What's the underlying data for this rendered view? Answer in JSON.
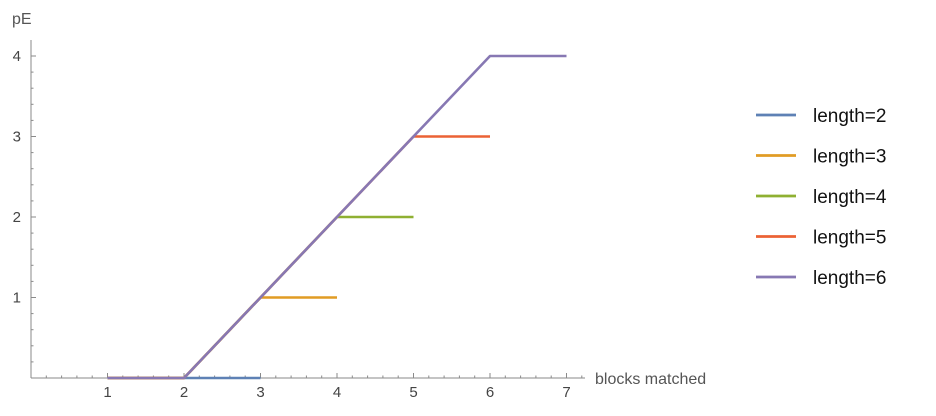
{
  "chart_data": {
    "type": "line",
    "xlabel": "blocks matched",
    "ylabel": "pE",
    "xlim": [
      0,
      7
    ],
    "ylim": [
      0,
      4
    ],
    "xticks": [
      1,
      2,
      3,
      4,
      5,
      6,
      7
    ],
    "yticks": [
      1,
      2,
      3,
      4
    ],
    "grid": false,
    "legend_position": "right",
    "series": [
      {
        "name": "length=2",
        "color": "#5e81b5",
        "x": [
          1,
          2,
          3
        ],
        "y": [
          0,
          0,
          0
        ]
      },
      {
        "name": "length=3",
        "color": "#e19c24",
        "x": [
          1,
          2,
          3,
          4
        ],
        "y": [
          0,
          0,
          1,
          1
        ]
      },
      {
        "name": "length=4",
        "color": "#8fb032",
        "x": [
          1,
          2,
          4,
          5
        ],
        "y": [
          0,
          0,
          2,
          2
        ]
      },
      {
        "name": "length=5",
        "color": "#eb6235",
        "x": [
          1,
          2,
          5,
          6
        ],
        "y": [
          0,
          0,
          3,
          3
        ]
      },
      {
        "name": "length=6",
        "color": "#8778b3",
        "x": [
          1,
          2,
          6,
          7
        ],
        "y": [
          0,
          0,
          4,
          4
        ]
      }
    ]
  }
}
